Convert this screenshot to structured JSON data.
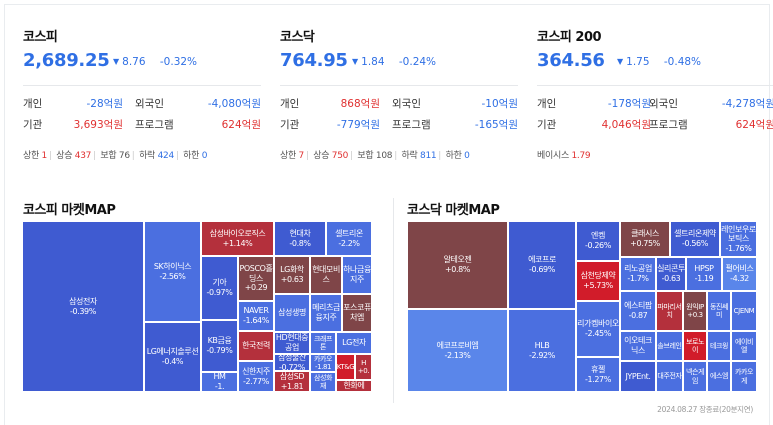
{
  "indices": [
    {
      "name": "코스피",
      "price": "2,689.25",
      "change": "8.76",
      "rate": "-0.32%",
      "rows": [
        {
          "l1": "개인",
          "v1": "-28억원",
          "c1": "down",
          "l2": "외국인",
          "v2": "-4,080억원",
          "c2": "down"
        },
        {
          "l1": "기관",
          "v1": "3,693억원",
          "c1": "up",
          "l2": "프로그램",
          "v2": "624억원",
          "c2": "up"
        }
      ],
      "stats": [
        {
          "label": "상한",
          "value": "1",
          "c": "up"
        },
        {
          "label": "상승",
          "value": "437",
          "c": "up"
        },
        {
          "label": "보합",
          "value": "76",
          "c": "flat"
        },
        {
          "label": "하락",
          "value": "424",
          "c": "down"
        },
        {
          "label": "하한",
          "value": "0",
          "c": "down"
        }
      ]
    },
    {
      "name": "코스닥",
      "price": "764.95",
      "change": "1.84",
      "rate": "-0.24%",
      "rows": [
        {
          "l1": "개인",
          "v1": "868억원",
          "c1": "up",
          "l2": "외국인",
          "v2": "-10억원",
          "c2": "down"
        },
        {
          "l1": "기관",
          "v1": "-779억원",
          "c1": "down",
          "l2": "프로그램",
          "v2": "-165억원",
          "c2": "down"
        }
      ],
      "stats": [
        {
          "label": "상한",
          "value": "7",
          "c": "up"
        },
        {
          "label": "상승",
          "value": "750",
          "c": "up"
        },
        {
          "label": "보합",
          "value": "108",
          "c": "flat"
        },
        {
          "label": "하락",
          "value": "811",
          "c": "down"
        },
        {
          "label": "하한",
          "value": "0",
          "c": "down"
        }
      ]
    },
    {
      "name": "코스피 200",
      "price": "364.56",
      "change": "1.75",
      "rate": "-0.48%",
      "rows": [
        {
          "l1": "개인",
          "v1": "-178억원",
          "c1": "down",
          "l2": "외국인",
          "v2": "-4,278억원",
          "c2": "down"
        },
        {
          "l1": "기관",
          "v1": "4,046억원",
          "c1": "up",
          "l2": "프로그램",
          "v2": "624억원",
          "c2": "up"
        }
      ],
      "stats": [
        {
          "label": "베이시스",
          "value": "1.79",
          "c": "up"
        }
      ]
    }
  ],
  "maps": {
    "kospi_title": "코스피 마켓MAP",
    "kosdaq_title": "코스닥 마켓MAP",
    "footnote": "2024.08.27 장종료(20분지연)"
  },
  "colors": {
    "down_strong": "#3f5bd1",
    "down_mid": "#4b6fe0",
    "down_light": "#5a86ea",
    "up_strong": "#d11c2a",
    "up_mid": "#b4303c",
    "up_dark": "#7f4548"
  },
  "kospi_tiles": [
    {
      "name": "삼성전자",
      "pct": "-0.39%",
      "shade": "down_strong"
    },
    {
      "name": "SK하이닉스",
      "pct": "-2.56%",
      "shade": "down_mid"
    },
    {
      "name": "LG에너지솔루션",
      "pct": "-0.4%",
      "shade": "down_strong"
    },
    {
      "name": "삼성바이오로직스",
      "pct": "+1.14%",
      "shade": "up_mid"
    },
    {
      "name": "현대차",
      "pct": "-0.8%",
      "shade": "down_strong"
    },
    {
      "name": "셀트리온",
      "pct": "-2.2%",
      "shade": "down_mid"
    },
    {
      "name": "기아",
      "pct": "-0.97%",
      "shade": "down_strong"
    },
    {
      "name": "POSCO홀딩스",
      "pct": "+0.29",
      "shade": "up_dark"
    },
    {
      "name": "LG화학",
      "pct": "+0.63",
      "shade": "up_dark"
    },
    {
      "name": "현대모비스",
      "pct": "",
      "shade": "up_dark"
    },
    {
      "name": "하나금융지주",
      "pct": "",
      "shade": "down_mid"
    },
    {
      "name": "KB금융",
      "pct": "-0.79%",
      "shade": "down_strong"
    },
    {
      "name": "NAVER",
      "pct": "-1.64%",
      "shade": "down_mid"
    },
    {
      "name": "삼성생명",
      "pct": "",
      "shade": "down_mid"
    },
    {
      "name": "메리츠금융지주",
      "pct": "",
      "shade": "down_mid"
    },
    {
      "name": "포스코퓨처엠",
      "pct": "",
      "shade": "up_dark"
    },
    {
      "name": "HD현대중공업",
      "pct": "",
      "shade": "down_strong"
    },
    {
      "name": "크래프톤",
      "pct": "",
      "shade": "down_mid"
    },
    {
      "name": "LG전자",
      "pct": "",
      "shade": "down_mid"
    },
    {
      "name": "한국전력",
      "pct": "",
      "shade": "up_mid"
    },
    {
      "name": "삼성물산",
      "pct": "-0.72%",
      "shade": "down_strong"
    },
    {
      "name": "카카오",
      "pct": "-1.81",
      "shade": "down_mid"
    },
    {
      "name": "KT&G",
      "pct": "",
      "shade": "up_strong"
    },
    {
      "name": "H",
      "pct": "+0.",
      "shade": "up_mid"
    },
    {
      "name": "HM",
      "pct": "-1.",
      "shade": "down_mid"
    },
    {
      "name": "신한지주",
      "pct": "-2.77%",
      "shade": "down_mid"
    },
    {
      "name": "삼성SD",
      "pct": "+1.81",
      "shade": "up_mid"
    },
    {
      "name": "삼성화재",
      "pct": "",
      "shade": "down_mid"
    },
    {
      "name": "한화에",
      "pct": "",
      "shade": "up_mid"
    },
    {
      "name": "LG",
      "pct": "",
      "shade": "down_mid"
    }
  ],
  "kosdaq_tiles": [
    {
      "name": "알테오젠",
      "pct": "+0.8%",
      "shade": "up_dark"
    },
    {
      "name": "에코프로비엠",
      "pct": "-2.13%",
      "shade": "down_light"
    },
    {
      "name": "에코프로",
      "pct": "-0.69%",
      "shade": "down_strong"
    },
    {
      "name": "HLB",
      "pct": "-2.92%",
      "shade": "down_mid"
    },
    {
      "name": "엔켐",
      "pct": "-0.26%",
      "shade": "down_strong"
    },
    {
      "name": "삼천당제약",
      "pct": "+5.73%",
      "shade": "up_strong"
    },
    {
      "name": "리가켐바이오",
      "pct": "-2.45%",
      "shade": "down_mid"
    },
    {
      "name": "휴젤",
      "pct": "-1.27%",
      "shade": "down_mid"
    },
    {
      "name": "클래시스",
      "pct": "+0.75%",
      "shade": "up_dark"
    },
    {
      "name": "셀트리온제약",
      "pct": "-0.56%",
      "shade": "down_strong"
    },
    {
      "name": "레인보우로보틱스",
      "pct": "-1.76%",
      "shade": "down_mid"
    },
    {
      "name": "리노공업",
      "pct": "-1.7%",
      "shade": "down_mid"
    },
    {
      "name": "실리콘투",
      "pct": "-0.63",
      "shade": "down_strong"
    },
    {
      "name": "HPSP",
      "pct": "-1.19",
      "shade": "down_mid"
    },
    {
      "name": "펄어비스",
      "pct": "-4.32",
      "shade": "down_light"
    },
    {
      "name": "에스티팜",
      "pct": "-0.87",
      "shade": "down_mid"
    },
    {
      "name": "파마리서치",
      "pct": "",
      "shade": "up_mid"
    },
    {
      "name": "원익IP",
      "pct": "+0.3",
      "shade": "up_dark"
    },
    {
      "name": "동진쎄미",
      "pct": "",
      "shade": "down_mid"
    },
    {
      "name": "CJENM",
      "pct": "",
      "shade": "down_mid"
    },
    {
      "name": "이오테크닉스",
      "pct": "",
      "shade": "down_mid"
    },
    {
      "name": "솔브레인",
      "pct": "",
      "shade": "down_mid"
    },
    {
      "name": "보로노이",
      "pct": "",
      "shade": "up_strong"
    },
    {
      "name": "테크윙",
      "pct": "",
      "shade": "down_mid"
    },
    {
      "name": "에이비엘",
      "pct": "",
      "shade": "down_mid"
    },
    {
      "name": "JYPEnt.",
      "pct": "",
      "shade": "down_strong"
    },
    {
      "name": "대주전자",
      "pct": "",
      "shade": "down_mid"
    },
    {
      "name": "넥슨게임",
      "pct": "",
      "shade": "down_mid"
    },
    {
      "name": "에스엠",
      "pct": "",
      "shade": "down_mid"
    },
    {
      "name": "카카오게",
      "pct": "",
      "shade": "down_mid"
    }
  ]
}
